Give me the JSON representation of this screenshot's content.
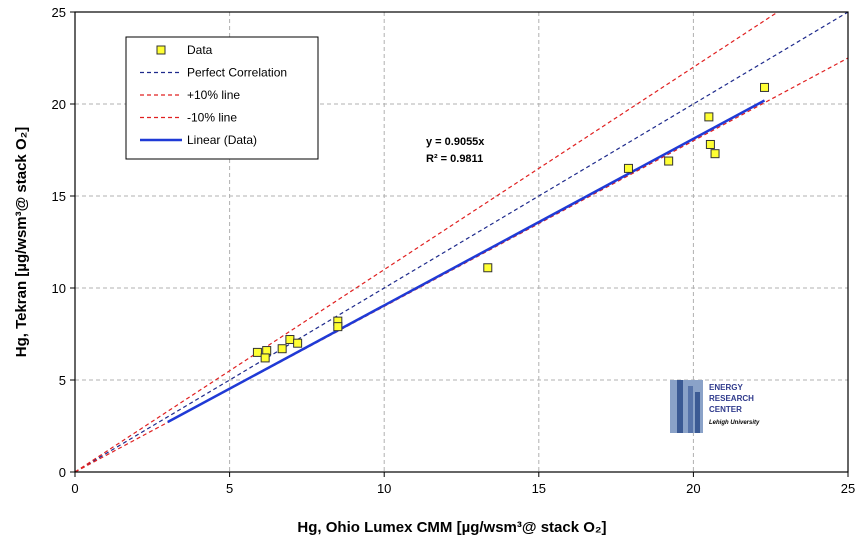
{
  "chart_data": {
    "type": "scatter",
    "xlabel": "Hg, Ohio Lumex CMM [µg/wsm³@ stack O₂]",
    "ylabel": "Hg, Tekran [µg/wsm³@ stack O₂]",
    "xlim": [
      0,
      25
    ],
    "ylim": [
      0,
      25
    ],
    "xticks": [
      0,
      5,
      10,
      15,
      20,
      25
    ],
    "yticks": [
      0,
      5,
      10,
      15,
      20,
      25
    ],
    "grid": true,
    "legend_position": "top-left",
    "series": [
      {
        "name": "Data",
        "kind": "markers",
        "color": "#ffff33",
        "points": [
          [
            5.9,
            6.5
          ],
          [
            6.2,
            6.6
          ],
          [
            6.15,
            6.2
          ],
          [
            6.7,
            6.7
          ],
          [
            6.95,
            7.2
          ],
          [
            7.2,
            7.0
          ],
          [
            8.5,
            8.2
          ],
          [
            8.5,
            7.9
          ],
          [
            13.35,
            11.1
          ],
          [
            17.9,
            16.5
          ],
          [
            19.2,
            16.9
          ],
          [
            20.5,
            19.3
          ],
          [
            20.55,
            17.8
          ],
          [
            20.7,
            17.3
          ],
          [
            22.3,
            20.9
          ]
        ]
      },
      {
        "name": "Perfect Correlation",
        "kind": "dashed",
        "color": "#1e2a8c",
        "x": [
          0,
          25
        ],
        "y": [
          0,
          25
        ]
      },
      {
        "name": "+10% line",
        "kind": "dashed",
        "color": "#e02020",
        "x": [
          0,
          25
        ],
        "y": [
          0,
          27.5
        ]
      },
      {
        "name": "-10% line",
        "kind": "dashed",
        "color": "#e02020",
        "x": [
          0,
          25
        ],
        "y": [
          0,
          22.5
        ]
      },
      {
        "name": "Linear (Data)",
        "kind": "solid",
        "color": "#1f3ad6",
        "x": [
          3,
          22.3
        ],
        "y": [
          2.7165,
          20.1927
        ]
      }
    ],
    "annotation": {
      "equation": "y = 0.9055x",
      "r_squared": "R² = 0.9811"
    },
    "watermark": {
      "line1": "ENERGY",
      "line2": "RESEARCH",
      "line3": "CENTER",
      "line4": "Lehigh University"
    }
  }
}
